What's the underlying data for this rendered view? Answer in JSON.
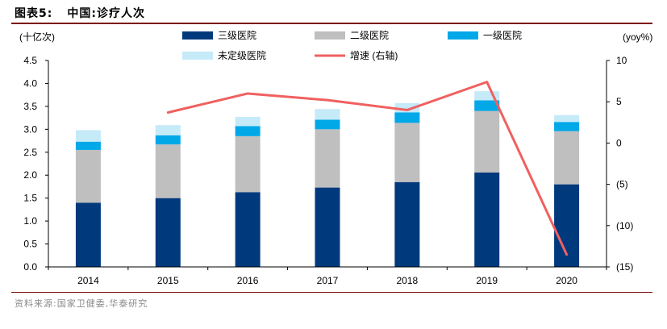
{
  "figure": {
    "label": "图表5:",
    "title": "中国:诊疗人次",
    "source": "资料来源:国家卫健委,华泰研究"
  },
  "colors": {
    "tier3": "#003a7d",
    "tier2": "#bfbfbf",
    "tier1": "#00a8e8",
    "unrated": "#c5eaf8",
    "growth": "#f06060",
    "rule": "#7a0c0c"
  },
  "chart_data": {
    "type": "bar",
    "stacked": true,
    "categories": [
      "2014",
      "2015",
      "2016",
      "2017",
      "2018",
      "2019",
      "2020"
    ],
    "series": [
      {
        "name": "三级医院",
        "values": [
          1.4,
          1.5,
          1.63,
          1.73,
          1.85,
          2.06,
          1.8
        ]
      },
      {
        "name": "二级医院",
        "values": [
          1.15,
          1.17,
          1.22,
          1.27,
          1.29,
          1.34,
          1.16
        ]
      },
      {
        "name": "一级医院",
        "values": [
          0.18,
          0.2,
          0.22,
          0.21,
          0.23,
          0.23,
          0.2
        ]
      },
      {
        "name": "未定级医院",
        "values": [
          0.25,
          0.22,
          0.2,
          0.23,
          0.2,
          0.2,
          0.15
        ]
      }
    ],
    "line_series": {
      "name": "增速 (右轴)",
      "axis": "right",
      "x": [
        "2015",
        "2016",
        "2017",
        "2018",
        "2019",
        "2020"
      ],
      "values": [
        3.7,
        6.0,
        5.2,
        4.0,
        7.4,
        -13.5
      ]
    },
    "ylabel_left": "(十亿次)",
    "ylabel_right": "(yoy%)",
    "ylim_left": [
      0,
      4.5
    ],
    "yticks_left": [
      "0.0",
      "0.5",
      "1.0",
      "1.5",
      "2.0",
      "2.5",
      "3.0",
      "3.5",
      "4.0",
      "4.5"
    ],
    "ylim_right": [
      -15,
      10
    ],
    "yticks_right": [
      "(15)",
      "(10)",
      "(5)",
      "0",
      "5",
      "10"
    ],
    "legend_position": "top"
  }
}
